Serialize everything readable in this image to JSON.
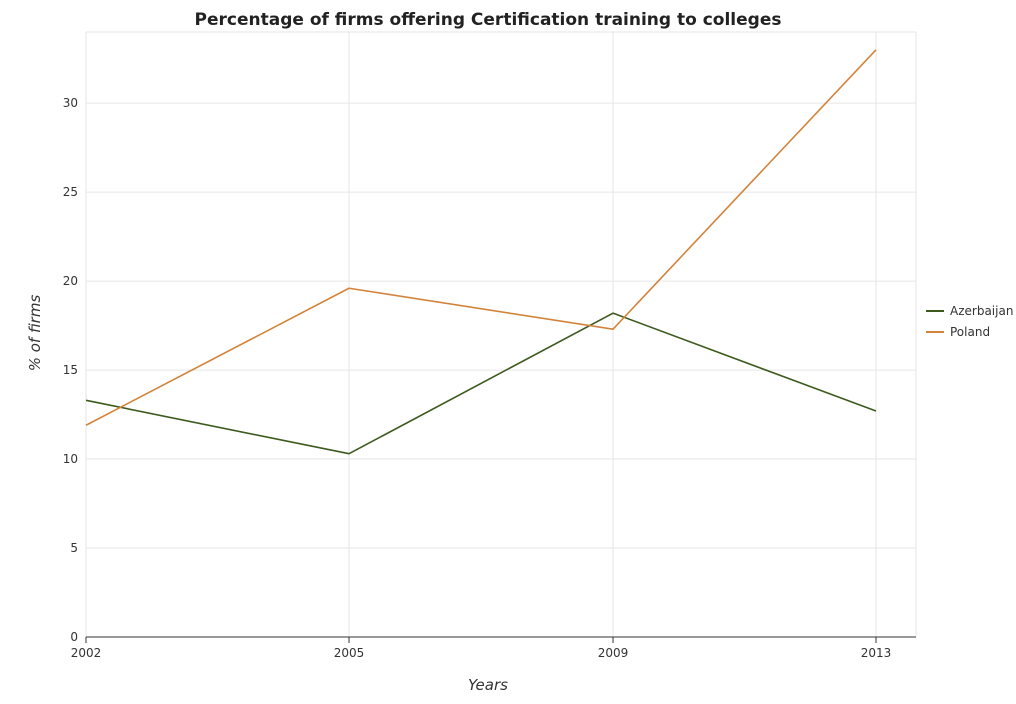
{
  "chart_data": {
    "type": "line",
    "title": "Percentage of firms offering Certification training to colleges",
    "xlabel": "Years",
    "ylabel": "% of firms",
    "categories": [
      "2002",
      "2005",
      "2009",
      "2013"
    ],
    "series": [
      {
        "name": "Azerbaijan",
        "color": "#3d5a1e",
        "values": [
          13.3,
          10.3,
          18.2,
          12.7
        ]
      },
      {
        "name": "Poland",
        "color": "#d2843a",
        "values": [
          11.9,
          19.6,
          17.3,
          33.0
        ]
      }
    ],
    "ylim": [
      0,
      34
    ],
    "yticks": [
      0,
      5,
      10,
      15,
      20,
      25,
      30
    ],
    "grid": true,
    "legend": "right"
  }
}
